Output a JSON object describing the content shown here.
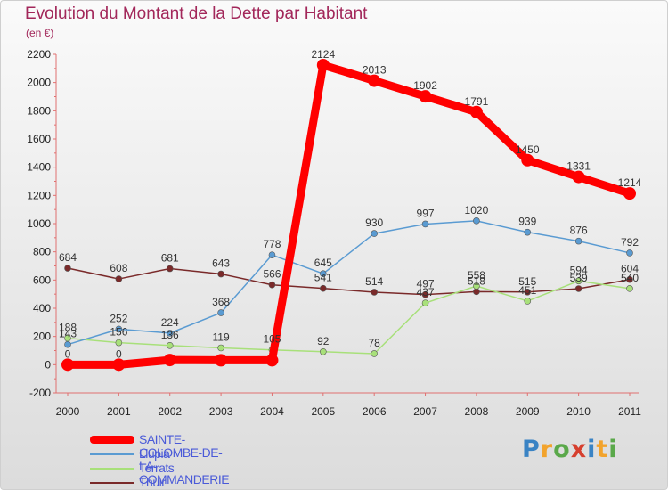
{
  "title": "Evolution du Montant de la Dette par Habitant",
  "unit": "(en €)",
  "brand": [
    "P",
    "r",
    "o",
    "x",
    "i",
    "t",
    "i"
  ],
  "chart_data": {
    "type": "line",
    "title": "Evolution du Montant de la Dette par Habitant",
    "subtitle": "(en €)",
    "xlabel": "",
    "ylabel": "",
    "x": [
      2000,
      2001,
      2002,
      2003,
      2004,
      2005,
      2006,
      2007,
      2008,
      2009,
      2010,
      2011
    ],
    "ylim": [
      -200,
      2200
    ],
    "yticks": [
      -200,
      0,
      200,
      400,
      600,
      800,
      1000,
      1200,
      1400,
      1600,
      1800,
      2000,
      2200
    ],
    "grid": false,
    "legend": "bottom",
    "series": [
      {
        "name": "SAINTE-COLOMBE-DE-LA-COMMANDERIE",
        "color": "#ff0000",
        "values": [
          0,
          0,
          33,
          31,
          31,
          2124,
          2013,
          1902,
          1791,
          1450,
          1331,
          1214
        ],
        "labels": [
          "0",
          "0",
          null,
          null,
          null,
          "2124",
          "2013",
          "1902",
          "1791",
          "1450",
          "1331",
          "1214"
        ]
      },
      {
        "name": "Llupia",
        "color": "#5a9bd2",
        "values": [
          143,
          252,
          224,
          368,
          778,
          645,
          930,
          997,
          1020,
          939,
          876,
          792
        ],
        "labels": [
          "143",
          "252",
          "224",
          "368",
          "778",
          "645",
          "930",
          "997",
          "1020",
          "939",
          "876",
          "792"
        ]
      },
      {
        "name": "Terrats",
        "color": "#a8e07a",
        "values": [
          188,
          156,
          136,
          119,
          105,
          92,
          78,
          437,
          558,
          451,
          594,
          540
        ],
        "labels": [
          "188",
          "156",
          "136",
          "119",
          "105",
          "92",
          "78",
          "437",
          "558",
          "451",
          "594",
          "540"
        ]
      },
      {
        "name": "Thuir",
        "color": "#7a2a2a",
        "values": [
          684,
          608,
          681,
          643,
          566,
          541,
          514,
          497,
          518,
          515,
          539,
          604
        ],
        "labels": [
          "684",
          "608",
          "681",
          "643",
          "566",
          "541",
          "514",
          "497",
          "518",
          "515",
          "539",
          "604"
        ]
      }
    ]
  }
}
